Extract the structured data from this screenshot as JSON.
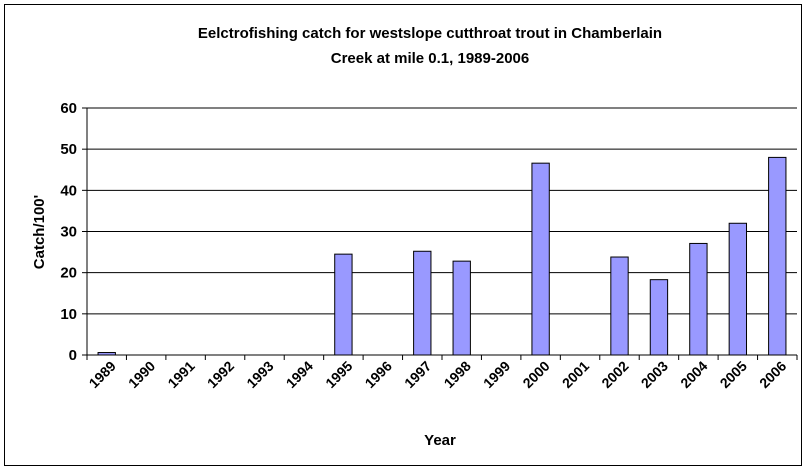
{
  "chart_data": {
    "type": "bar",
    "title_lines": [
      "Eelctrofishing catch for westslope cutthroat trout in Chamberlain",
      "Creek at mile 0.1, 1989-2006"
    ],
    "xlabel": "Year",
    "ylabel": "Catch/100'",
    "ylim": [
      0,
      60
    ],
    "yticks": [
      "0",
      "10",
      "20",
      "30",
      "40",
      "50",
      "60"
    ],
    "categories": [
      "1989",
      "1990",
      "1991",
      "1992",
      "1993",
      "1994",
      "1995",
      "1996",
      "1997",
      "1998",
      "1999",
      "2000",
      "2001",
      "2002",
      "2003",
      "2004",
      "2005",
      "2006"
    ],
    "values": [
      0.6,
      0,
      0,
      0,
      0,
      0,
      24.5,
      0,
      25.2,
      22.8,
      0,
      46.6,
      0,
      23.8,
      18.3,
      27.1,
      32.0,
      48.0
    ],
    "bar_color": "#9999ff",
    "grid": true,
    "legend": "none"
  }
}
